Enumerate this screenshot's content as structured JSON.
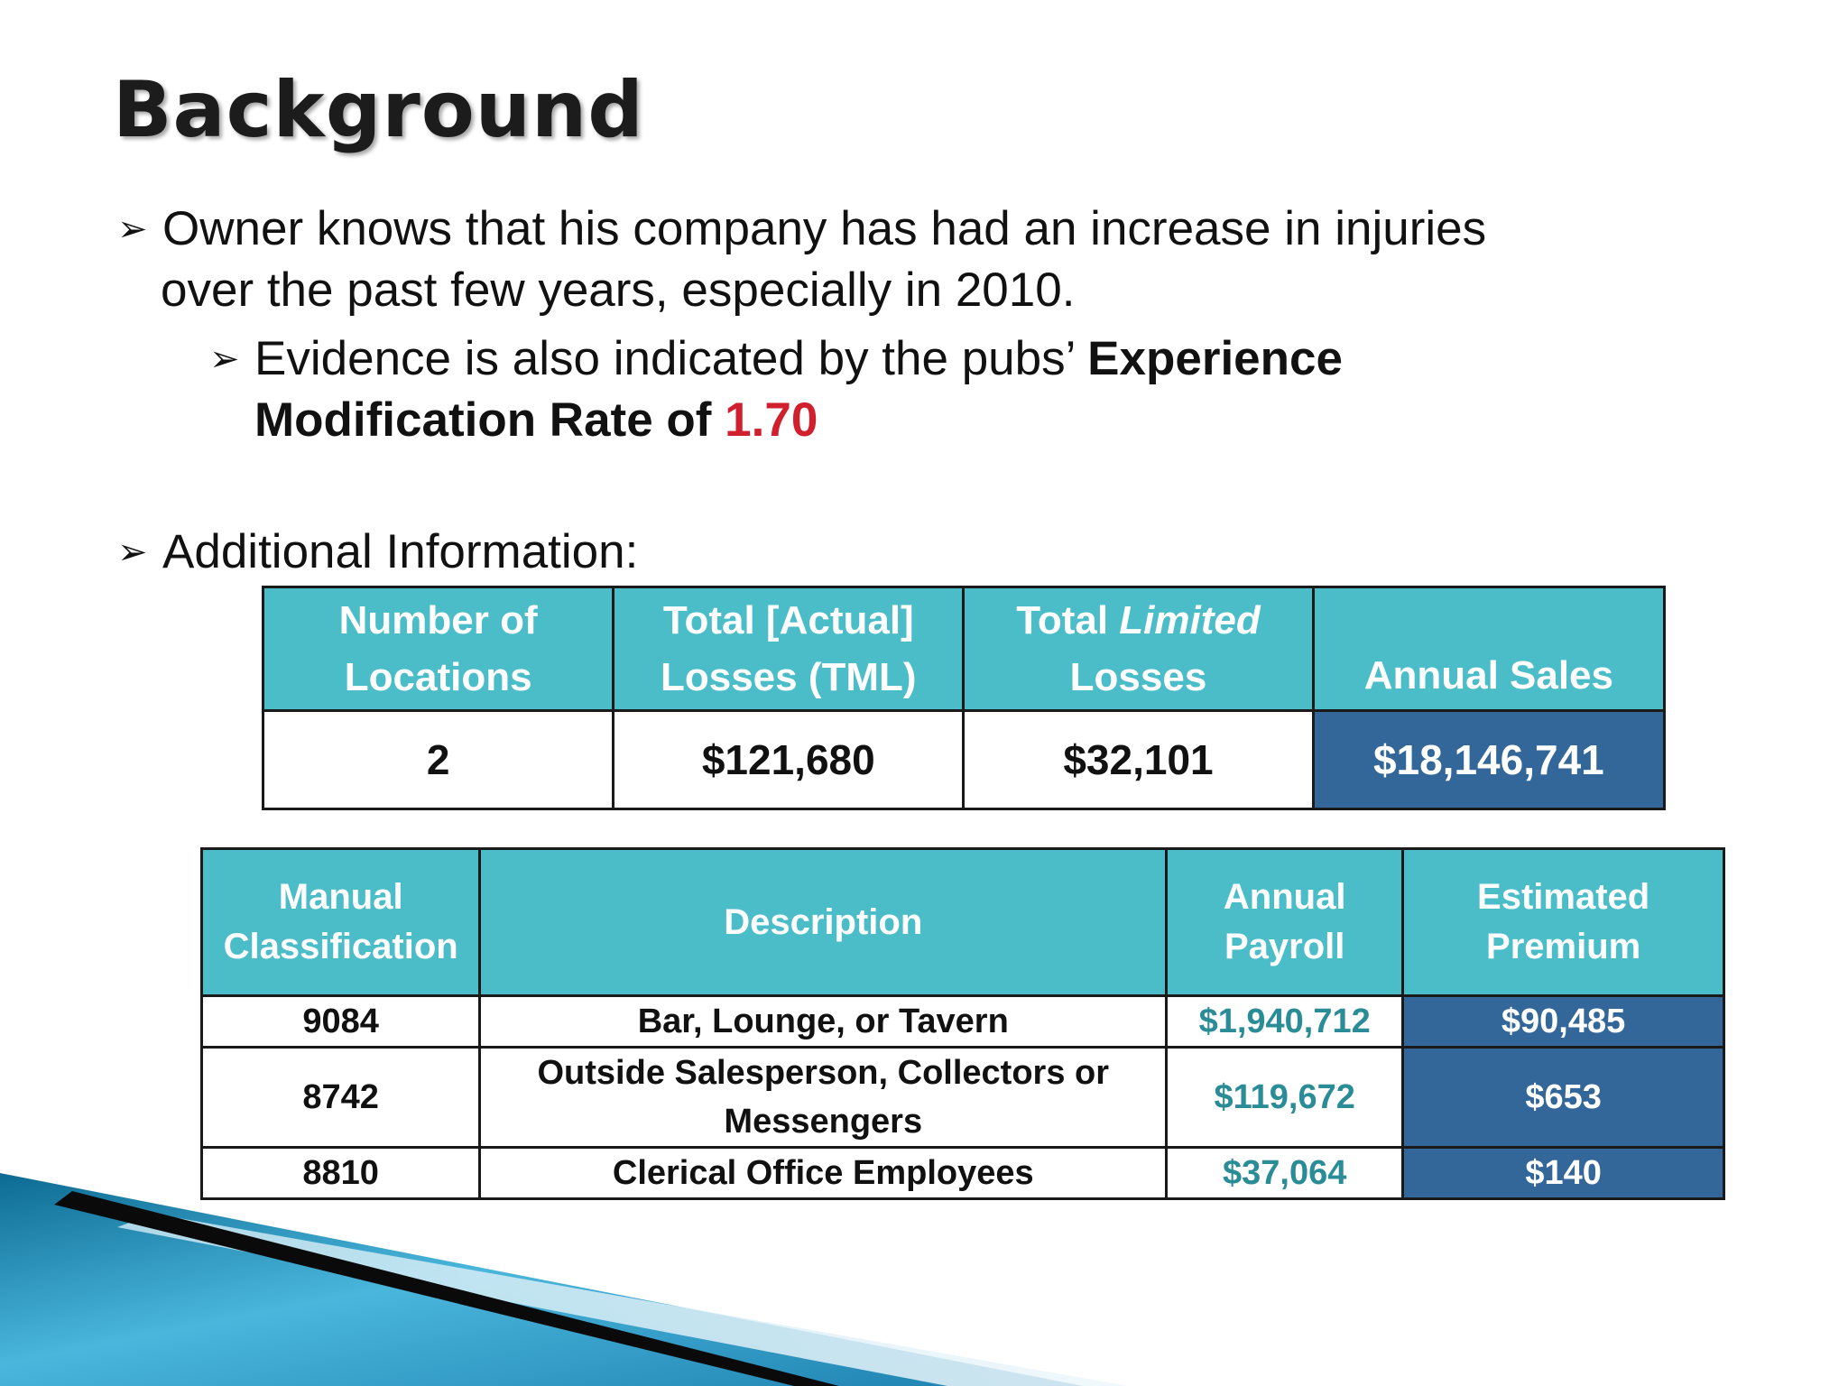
{
  "slide": {
    "title": "Background",
    "bullet1": {
      "line1": "Owner knows that his company has had an increase in injuries",
      "line2": "over the past few years, especially in 2010."
    },
    "bullet2": {
      "text_plain": "Evidence is also indicated by the pubs’ ",
      "text_bold1": "Experience",
      "text_bold2": "Modification Rate of ",
      "rate": "1.70"
    },
    "bullet3": {
      "text": "Additional Information:"
    }
  },
  "summary_table": {
    "headers": {
      "locations_line1": "Number of",
      "locations_line2": "Locations",
      "tml_line1": "Total [Actual]",
      "tml_line2": "Losses (TML)",
      "limited_pre": "Total ",
      "limited_em": "Limited",
      "limited_line2": "Losses",
      "sales": "Annual Sales"
    },
    "row": {
      "locations": "2",
      "tml": "$121,680",
      "limited": "$32,101",
      "sales": "$18,146,741"
    }
  },
  "classification_table": {
    "headers": {
      "class_line1": "Manual",
      "class_line2": "Classification",
      "description": "Description",
      "payroll_line1": "Annual",
      "payroll_line2": "Payroll",
      "premium_line1": "Estimated",
      "premium_line2": "Premium"
    },
    "rows": [
      {
        "code": "9084",
        "description": "Bar, Lounge, or Tavern",
        "payroll": "$1,940,712",
        "premium": "$90,485"
      },
      {
        "code": "8742",
        "description_line1": "Outside Salesperson, Collectors or",
        "description_line2": "Messengers",
        "payroll": "$119,672",
        "premium": "$653"
      },
      {
        "code": "8810",
        "description": "Clerical Office Employees",
        "payroll": "$37,064",
        "premium": "$140"
      }
    ]
  },
  "colors": {
    "header_teal": "#4bbdc8",
    "dark_blue": "#336699",
    "accent_red": "#d0202e",
    "value_teal": "#2a8c97"
  }
}
